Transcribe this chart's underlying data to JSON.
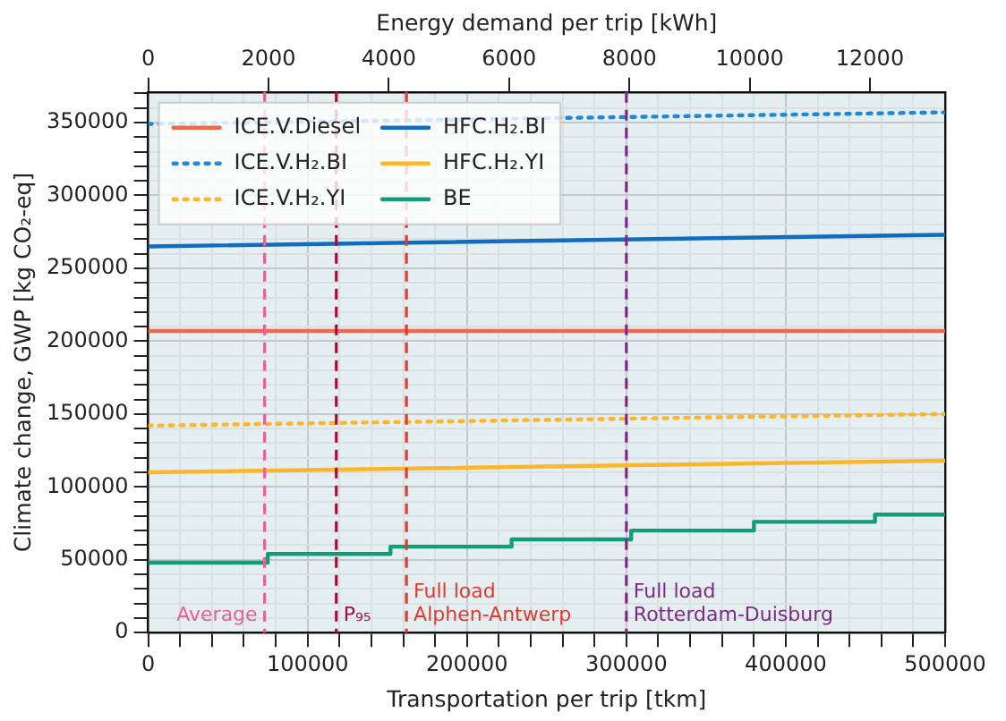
{
  "chart_data": {
    "type": "line",
    "xlabel": "Transportation per trip [tkm]",
    "ylabel": "Climate change, GWP [kg CO₂-eq]",
    "x2label": "Energy demand per trip [kWh]",
    "x": [
      0,
      500000
    ],
    "series": [
      {
        "name": "ICE.V.Diesel",
        "color": "#ee6a4a",
        "values": [
          207000,
          207000
        ]
      },
      {
        "name": "ICE.V.H₂.BI",
        "color": "#1f88d8",
        "line_style": "dotted",
        "values": [
          349000,
          357000
        ]
      },
      {
        "name": "ICE.V.H₂.YI",
        "color": "#fdb62a",
        "line_style": "dotted",
        "values": [
          142000,
          150000
        ]
      },
      {
        "name": "HFC.H₂.BI",
        "color": "#0f6cc0",
        "values": [
          265000,
          273000
        ]
      },
      {
        "name": "HFC.H₂.YI",
        "color": "#fdb62a",
        "values": [
          110000,
          118000
        ]
      },
      {
        "name": "BE",
        "color": "#109d7a",
        "type": "step",
        "x": [
          0,
          75000,
          152000,
          228000,
          303000,
          380000,
          456000,
          500000
        ],
        "values": [
          48000,
          54000,
          59000,
          64000,
          70000,
          76000,
          81000,
          81000
        ]
      }
    ],
    "xlim": [
      0,
      500000
    ],
    "xticks": [
      0,
      {
        "value": 20000,
        "label": null
      },
      {
        "value": 40000,
        "label": null
      },
      {
        "value": 60000,
        "label": null
      },
      {
        "value": 80000,
        "label": null
      },
      100000,
      {
        "value": 120000,
        "label": null
      },
      {
        "value": 140000,
        "label": null
      },
      {
        "value": 160000,
        "label": null
      },
      {
        "value": 180000,
        "label": null
      },
      200000,
      {
        "value": 220000,
        "label": null
      },
      {
        "value": 240000,
        "label": null
      },
      {
        "value": 260000,
        "label": null
      },
      {
        "value": 280000,
        "label": null
      },
      300000,
      {
        "value": 320000,
        "label": null
      },
      {
        "value": 340000,
        "label": null
      },
      {
        "value": 360000,
        "label": null
      },
      {
        "value": 380000,
        "label": null
      },
      400000,
      {
        "value": 420000,
        "label": null
      },
      {
        "value": 440000,
        "label": null
      },
      {
        "value": 460000,
        "label": null
      },
      {
        "value": 480000,
        "label": null
      },
      500000
    ],
    "ylim": [
      0,
      371000
    ],
    "yticks": [
      0,
      {
        "value": 10000,
        "label": null
      },
      {
        "value": 20000,
        "label": null
      },
      {
        "value": 30000,
        "label": null
      },
      {
        "value": 40000,
        "label": null
      },
      50000,
      {
        "value": 60000,
        "label": null
      },
      {
        "value": 70000,
        "label": null
      },
      {
        "value": 80000,
        "label": null
      },
      {
        "value": 90000,
        "label": null
      },
      100000,
      {
        "value": 110000,
        "label": null
      },
      {
        "value": 120000,
        "label": null
      },
      {
        "value": 130000,
        "label": null
      },
      {
        "value": 140000,
        "label": null
      },
      150000,
      {
        "value": 160000,
        "label": null
      },
      {
        "value": 170000,
        "label": null
      },
      {
        "value": 180000,
        "label": null
      },
      {
        "value": 190000,
        "label": null
      },
      200000,
      {
        "value": 210000,
        "label": null
      },
      {
        "value": 220000,
        "label": null
      },
      {
        "value": 230000,
        "label": null
      },
      {
        "value": 240000,
        "label": null
      },
      250000,
      {
        "value": 260000,
        "label": null
      },
      {
        "value": 270000,
        "label": null
      },
      {
        "value": 280000,
        "label": null
      },
      {
        "value": 290000,
        "label": null
      },
      300000,
      {
        "value": 310000,
        "label": null
      },
      {
        "value": 320000,
        "label": null
      },
      {
        "value": 330000,
        "label": null
      },
      {
        "value": 340000,
        "label": null
      },
      350000,
      {
        "value": 360000,
        "label": null
      },
      {
        "value": 370000,
        "label": null
      }
    ],
    "x2lim": [
      0,
      13250
    ],
    "x2ticks": [
      0,
      2000,
      4000,
      6000,
      8000,
      10000,
      12000
    ],
    "ref_lines": [
      {
        "axis": "x",
        "value": 73000,
        "label": "Average",
        "color": "#e8609a",
        "line_style": "dashed"
      },
      {
        "axis": "x",
        "value": 118000,
        "label": "P₉₅",
        "color": "#a0103a",
        "line_style": "dashed"
      },
      {
        "axis": "x",
        "value": 162000,
        "label": "Full load\nAlphen-Antwerp",
        "color": "#e03a30",
        "line_style": "dashed"
      },
      {
        "axis": "x",
        "value": 300000,
        "label": "Full load\nRotterdam-Duisburg",
        "color": "#7a2a86",
        "line_style": "dashed"
      }
    ],
    "grid": true,
    "legend": "top left",
    "marker": "none",
    "line_style": "solid"
  }
}
